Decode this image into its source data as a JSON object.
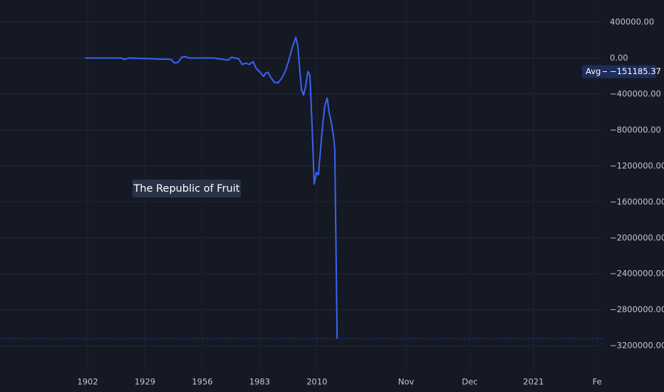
{
  "chart_data": {
    "type": "line",
    "color": "#3a63f0",
    "annotation": "The Republic of Fruit",
    "avg_label": "Avg",
    "avg": -151185.37,
    "avg_value_label": "−151185.37",
    "x": [
      1900.7,
      1917.8,
      1919.4,
      1921.1,
      1941.3,
      1942.9,
      1944.6,
      1946.3,
      1948.0,
      1949.7,
      1961.4,
      1968.1,
      1969.8,
      1973.1,
      1974.8,
      1976.5,
      1978.2,
      1979.9,
      1981.5,
      1983.2,
      1984.9,
      1985.9,
      1986.9,
      1988.2,
      1989.9,
      1991.6,
      1993.3,
      1995.0,
      1996.6,
      1998.3,
      2000.0,
      2001.0,
      2001.7,
      2002.7,
      2003.7,
      2004.7,
      2005.7,
      2006.7,
      2007.7,
      2008.7,
      2009.7,
      2010.7,
      2011.7,
      2012.7,
      2013.7,
      2014.8,
      2015.8,
      2016.8,
      2017.8,
      2018.4,
      2019.5
    ],
    "values": [
      0,
      0,
      -15800,
      0,
      -15800,
      -55400,
      -47500,
      7900,
      15800,
      0,
      0,
      -23800,
      7900,
      -7900,
      -71300,
      -55400,
      -71300,
      -39600,
      -118800,
      -158400,
      -205900,
      -166300,
      -158400,
      -213900,
      -269300,
      -277200,
      -229700,
      -150500,
      -39600,
      110900,
      229700,
      134700,
      -71300,
      -348500,
      -411900,
      -308900,
      -150500,
      -190100,
      -744600,
      -1402000,
      -1275300,
      -1299000,
      -1021800,
      -744600,
      -530700,
      -443600,
      -609900,
      -720800,
      -863400,
      -1021800,
      -3120000
    ],
    "xlim": [
      1860.7,
      2145.3
    ],
    "xticks": [
      1902,
      1929,
      1956,
      1983,
      2010,
      {
        "value": 2052,
        "label": "Nov"
      },
      {
        "value": 2082,
        "label": "Dec"
      },
      {
        "value": 2112,
        "label": "2021"
      },
      {
        "value": 2142,
        "label": "Fe"
      }
    ],
    "ylim": [
      -3460000,
      645000
    ],
    "yticks": [
      {
        "value": 400000,
        "label": "400000.00"
      },
      {
        "value": 0,
        "label": "0.00"
      },
      {
        "value": -400000,
        "label": "−400000.00"
      },
      {
        "value": -800000,
        "label": "−800000.00"
      },
      {
        "value": -1200000,
        "label": "−1200000.00"
      },
      {
        "value": -1600000,
        "label": "−1600000.00"
      },
      {
        "value": -2000000,
        "label": "−2000000.00"
      },
      {
        "value": -2400000,
        "label": "−2400000.00"
      },
      {
        "value": -2800000,
        "label": "−2800000.00"
      },
      {
        "value": -3200000,
        "label": "−3200000.00"
      }
    ],
    "grid": true
  }
}
